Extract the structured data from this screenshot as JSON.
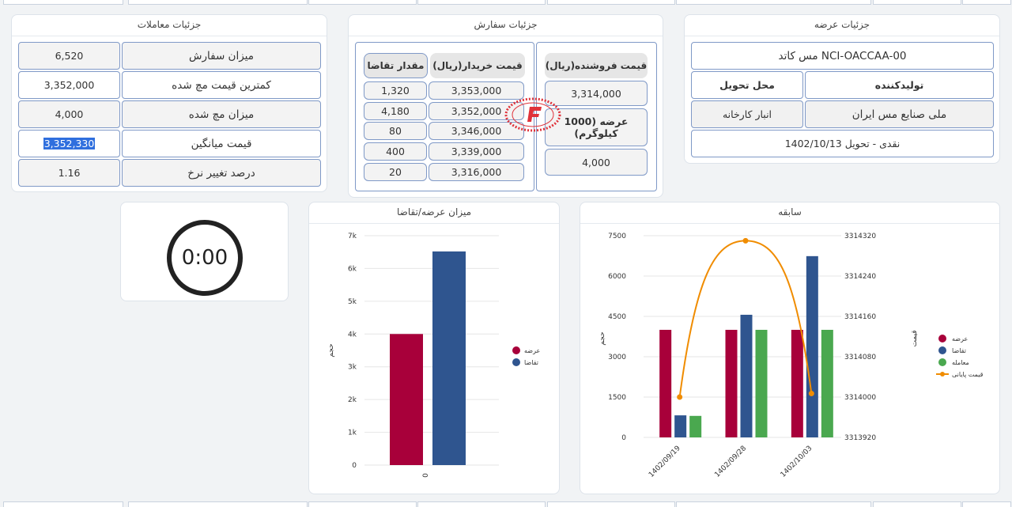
{
  "panels": {
    "trades_title": "جزئیات معاملات",
    "order_title": "جزئیات سفارش",
    "offer_title": "جزئیات عرضه",
    "supply_demand_title": "میزان عرضه/تقاضا",
    "history_title": "سابقه"
  },
  "trades": [
    {
      "label": "میزان سفارش",
      "value": "6,520"
    },
    {
      "label": "کمترین قیمت مچ شده",
      "value": "3,352,000"
    },
    {
      "label": "میزان مچ شده",
      "value": "4,000"
    },
    {
      "label": "قیمت میانگین",
      "value": "3,352,330"
    },
    {
      "label": "درصد تغییر نرخ",
      "value": "1.16"
    }
  ],
  "order": {
    "seller_header": "قیمت فروشنده(ریال)",
    "buyer_header": "قیمت خریدار(ریال)",
    "qty_header": "مقدار تقاضا",
    "seller_price": "3,314,000",
    "offer_label": "عرضه (1000 کیلوگرم)",
    "offer_value": "4,000",
    "rows": [
      {
        "price": "3,353,000",
        "qty": "1,320"
      },
      {
        "price": "3,352,000",
        "qty": "4,180"
      },
      {
        "price": "3,346,000",
        "qty": "80"
      },
      {
        "price": "3,339,000",
        "qty": "400"
      },
      {
        "price": "3,316,000",
        "qty": "20"
      }
    ]
  },
  "offer": {
    "product": "مس کاتد NCI-OACCAA-00",
    "producer_header": "تولیدکننده",
    "delivery_header": "محل تحویل",
    "producer": "ملی صنایع مس ایران",
    "delivery": "انبار کارخانه",
    "terms": "نقدی - تحویل 1402/10/13"
  },
  "timer": {
    "value": "0:00"
  },
  "chart_data": [
    {
      "type": "bar",
      "title": "میزان عرضه/تقاضا",
      "categories": [
        "0"
      ],
      "series": [
        {
          "name": "عرضه",
          "values": [
            4000
          ],
          "color": "#a8003a"
        },
        {
          "name": "تقاضا",
          "values": [
            6520
          ],
          "color": "#2f558f"
        }
      ],
      "ylim": [
        0,
        7000
      ],
      "yticks": [
        "0",
        "1k",
        "2k",
        "3k",
        "4k",
        "5k",
        "6k",
        "7k"
      ],
      "ylabel": "حجم",
      "grid": true,
      "legend": "right"
    },
    {
      "type": "bar",
      "title": "سابقه",
      "categories": [
        "1402/09/19",
        "1402/09/28",
        "1402/10/03"
      ],
      "series": [
        {
          "name": "عرضه",
          "values": [
            4000,
            4000,
            4000
          ],
          "color": "#a8003a"
        },
        {
          "name": "تقاضا",
          "values": [
            820,
            4560,
            6740
          ],
          "color": "#2f558f"
        },
        {
          "name": "معامله",
          "values": [
            800,
            4000,
            4000
          ],
          "color": "#4aa84f"
        },
        {
          "name": "قیمت پایانی",
          "type": "line",
          "axis": "right",
          "values": [
            3314000,
            3314310,
            3314007
          ],
          "color": "#f08c00"
        }
      ],
      "ylim": [
        0,
        7500
      ],
      "yticks": [
        "0",
        "1500",
        "3000",
        "4500",
        "6000",
        "7500"
      ],
      "y2lim": [
        3313920,
        3314320
      ],
      "y2ticks": [
        "3313920",
        "3314000",
        "3314080",
        "3314160",
        "3314240",
        "3314320"
      ],
      "ylabel": "حجم",
      "y2label": "قیمت",
      "grid": true,
      "legend": "right"
    }
  ]
}
